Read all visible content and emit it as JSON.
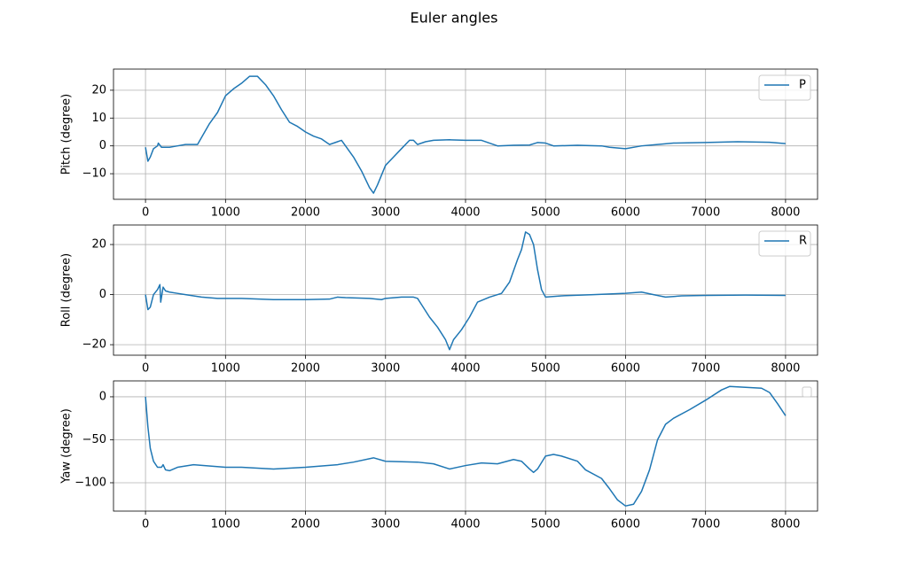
{
  "title": "Euler angles",
  "chart_data": [
    {
      "type": "line",
      "ylabel": "Pitch (degree)",
      "grid": true,
      "legend": "upper right",
      "xlim": [
        -400,
        8400
      ],
      "xticks": [
        0,
        1000,
        2000,
        3000,
        4000,
        5000,
        6000,
        7000,
        8000
      ],
      "ylim": [
        -19.2,
        27.6
      ],
      "yticks": [
        {
          "value": -10,
          "label": "−10"
        },
        0,
        10,
        20
      ],
      "x": [
        0,
        30,
        60,
        100,
        150,
        160,
        200,
        300,
        400,
        500,
        600,
        650,
        700,
        800,
        900,
        1000,
        1100,
        1200,
        1300,
        1400,
        1500,
        1600,
        1700,
        1800,
        1900,
        2000,
        2100,
        2200,
        2300,
        2400,
        2450,
        2500,
        2600,
        2700,
        2800,
        2850,
        2900,
        3000,
        3100,
        3200,
        3300,
        3350,
        3400,
        3500,
        3600,
        3800,
        4000,
        4200,
        4300,
        4400,
        4600,
        4800,
        4900,
        5000,
        5100,
        5400,
        5700,
        5800,
        6000,
        6200,
        6400,
        6600,
        7000,
        7400,
        7800,
        8000
      ],
      "series": [
        {
          "name": "P",
          "color": "#1f77b4",
          "values": [
            -0.5,
            -5.5,
            -4,
            -1,
            0,
            1,
            -0.5,
            -0.5,
            0,
            0.5,
            0.5,
            0.5,
            3,
            8,
            12,
            18,
            20.5,
            22.5,
            25,
            25,
            22,
            18,
            13,
            8.5,
            7,
            5,
            3.5,
            2.5,
            0.5,
            1.5,
            2,
            0,
            -4,
            -9,
            -15,
            -17,
            -14,
            -7,
            -4,
            -1,
            2,
            2,
            0.5,
            1.5,
            2,
            2.2,
            2,
            2,
            1,
            0,
            0.2,
            0.3,
            1.2,
            1,
            0,
            0.2,
            0,
            -0.5,
            -1,
            0,
            0.5,
            1,
            1.2,
            1.5,
            1.3,
            0.8
          ]
        }
      ]
    },
    {
      "type": "line",
      "ylabel": "Roll (degree)",
      "grid": true,
      "legend": "upper right",
      "xlim": [
        -400,
        8400
      ],
      "xticks": [
        0,
        1000,
        2000,
        3000,
        4000,
        5000,
        6000,
        7000,
        8000
      ],
      "ylim": [
        -24.2,
        27.8
      ],
      "yticks": [
        {
          "value": -20,
          "label": "−20"
        },
        0,
        20
      ],
      "x": [
        0,
        30,
        60,
        100,
        150,
        180,
        190,
        220,
        250,
        300,
        400,
        500,
        600,
        700,
        900,
        1200,
        1600,
        2000,
        2300,
        2400,
        2500,
        2800,
        2950,
        3000,
        3200,
        3350,
        3400,
        3450,
        3550,
        3650,
        3750,
        3800,
        3850,
        3950,
        4050,
        4150,
        4300,
        4450,
        4550,
        4650,
        4700,
        4750,
        4800,
        4850,
        4900,
        4950,
        5000,
        5200,
        5600,
        6000,
        6200,
        6350,
        6500,
        6700,
        7000,
        7500,
        8000
      ],
      "series": [
        {
          "name": "R",
          "color": "#1f77b4",
          "values": [
            0,
            -6,
            -5,
            0,
            2,
            4,
            -3,
            3,
            1.5,
            1,
            0.5,
            0,
            -0.5,
            -1,
            -1.5,
            -1.5,
            -2,
            -2,
            -1.8,
            -1,
            -1.2,
            -1.5,
            -2,
            -1.5,
            -1,
            -1,
            -1.5,
            -4,
            -9,
            -13,
            -18,
            -22,
            -18,
            -14,
            -9,
            -3,
            -1,
            0.5,
            5,
            14,
            18,
            25,
            24,
            20,
            10,
            2,
            -1,
            -0.5,
            0,
            0.5,
            1,
            0,
            -1,
            -0.5,
            -0.3,
            -0.2,
            -0.3
          ]
        }
      ]
    },
    {
      "type": "line",
      "ylabel": "Yaw (degree)",
      "grid": true,
      "legend": "upper right",
      "xlim": [
        -400,
        8400
      ],
      "xticks": [
        0,
        1000,
        2000,
        3000,
        4000,
        5000,
        6000,
        7000,
        8000
      ],
      "ylim": [
        -133,
        18.5
      ],
      "yticks": [
        {
          "value": -100,
          "label": "−100"
        },
        {
          "value": -50,
          "label": "−50"
        },
        0
      ],
      "x": [
        0,
        30,
        60,
        100,
        150,
        200,
        220,
        250,
        300,
        400,
        600,
        1000,
        1200,
        1600,
        2000,
        2400,
        2600,
        2850,
        3000,
        3400,
        3600,
        3800,
        4000,
        4200,
        4400,
        4600,
        4700,
        4800,
        4850,
        4900,
        5000,
        5100,
        5200,
        5400,
        5500,
        5700,
        5800,
        5900,
        6000,
        6100,
        6200,
        6300,
        6400,
        6500,
        6600,
        6800,
        7000,
        7200,
        7300,
        7500,
        7700,
        7800,
        7900,
        8000
      ],
      "series": [
        {
          "color": "#1f77b4",
          "values": [
            0,
            -35,
            -60,
            -75,
            -82,
            -82,
            -79,
            -85,
            -86,
            -82,
            -79,
            -82,
            -82,
            -84,
            -82,
            -79,
            -76,
            -71,
            -75,
            -76,
            -78,
            -84,
            -80,
            -77,
            -78,
            -73,
            -75,
            -84,
            -88,
            -84,
            -69,
            -67,
            -69,
            -75,
            -85,
            -95,
            -107,
            -120,
            -127,
            -125,
            -110,
            -85,
            -50,
            -32,
            -25,
            -15,
            -4,
            8,
            12,
            11,
            10,
            5,
            -8,
            -22
          ]
        }
      ]
    }
  ]
}
